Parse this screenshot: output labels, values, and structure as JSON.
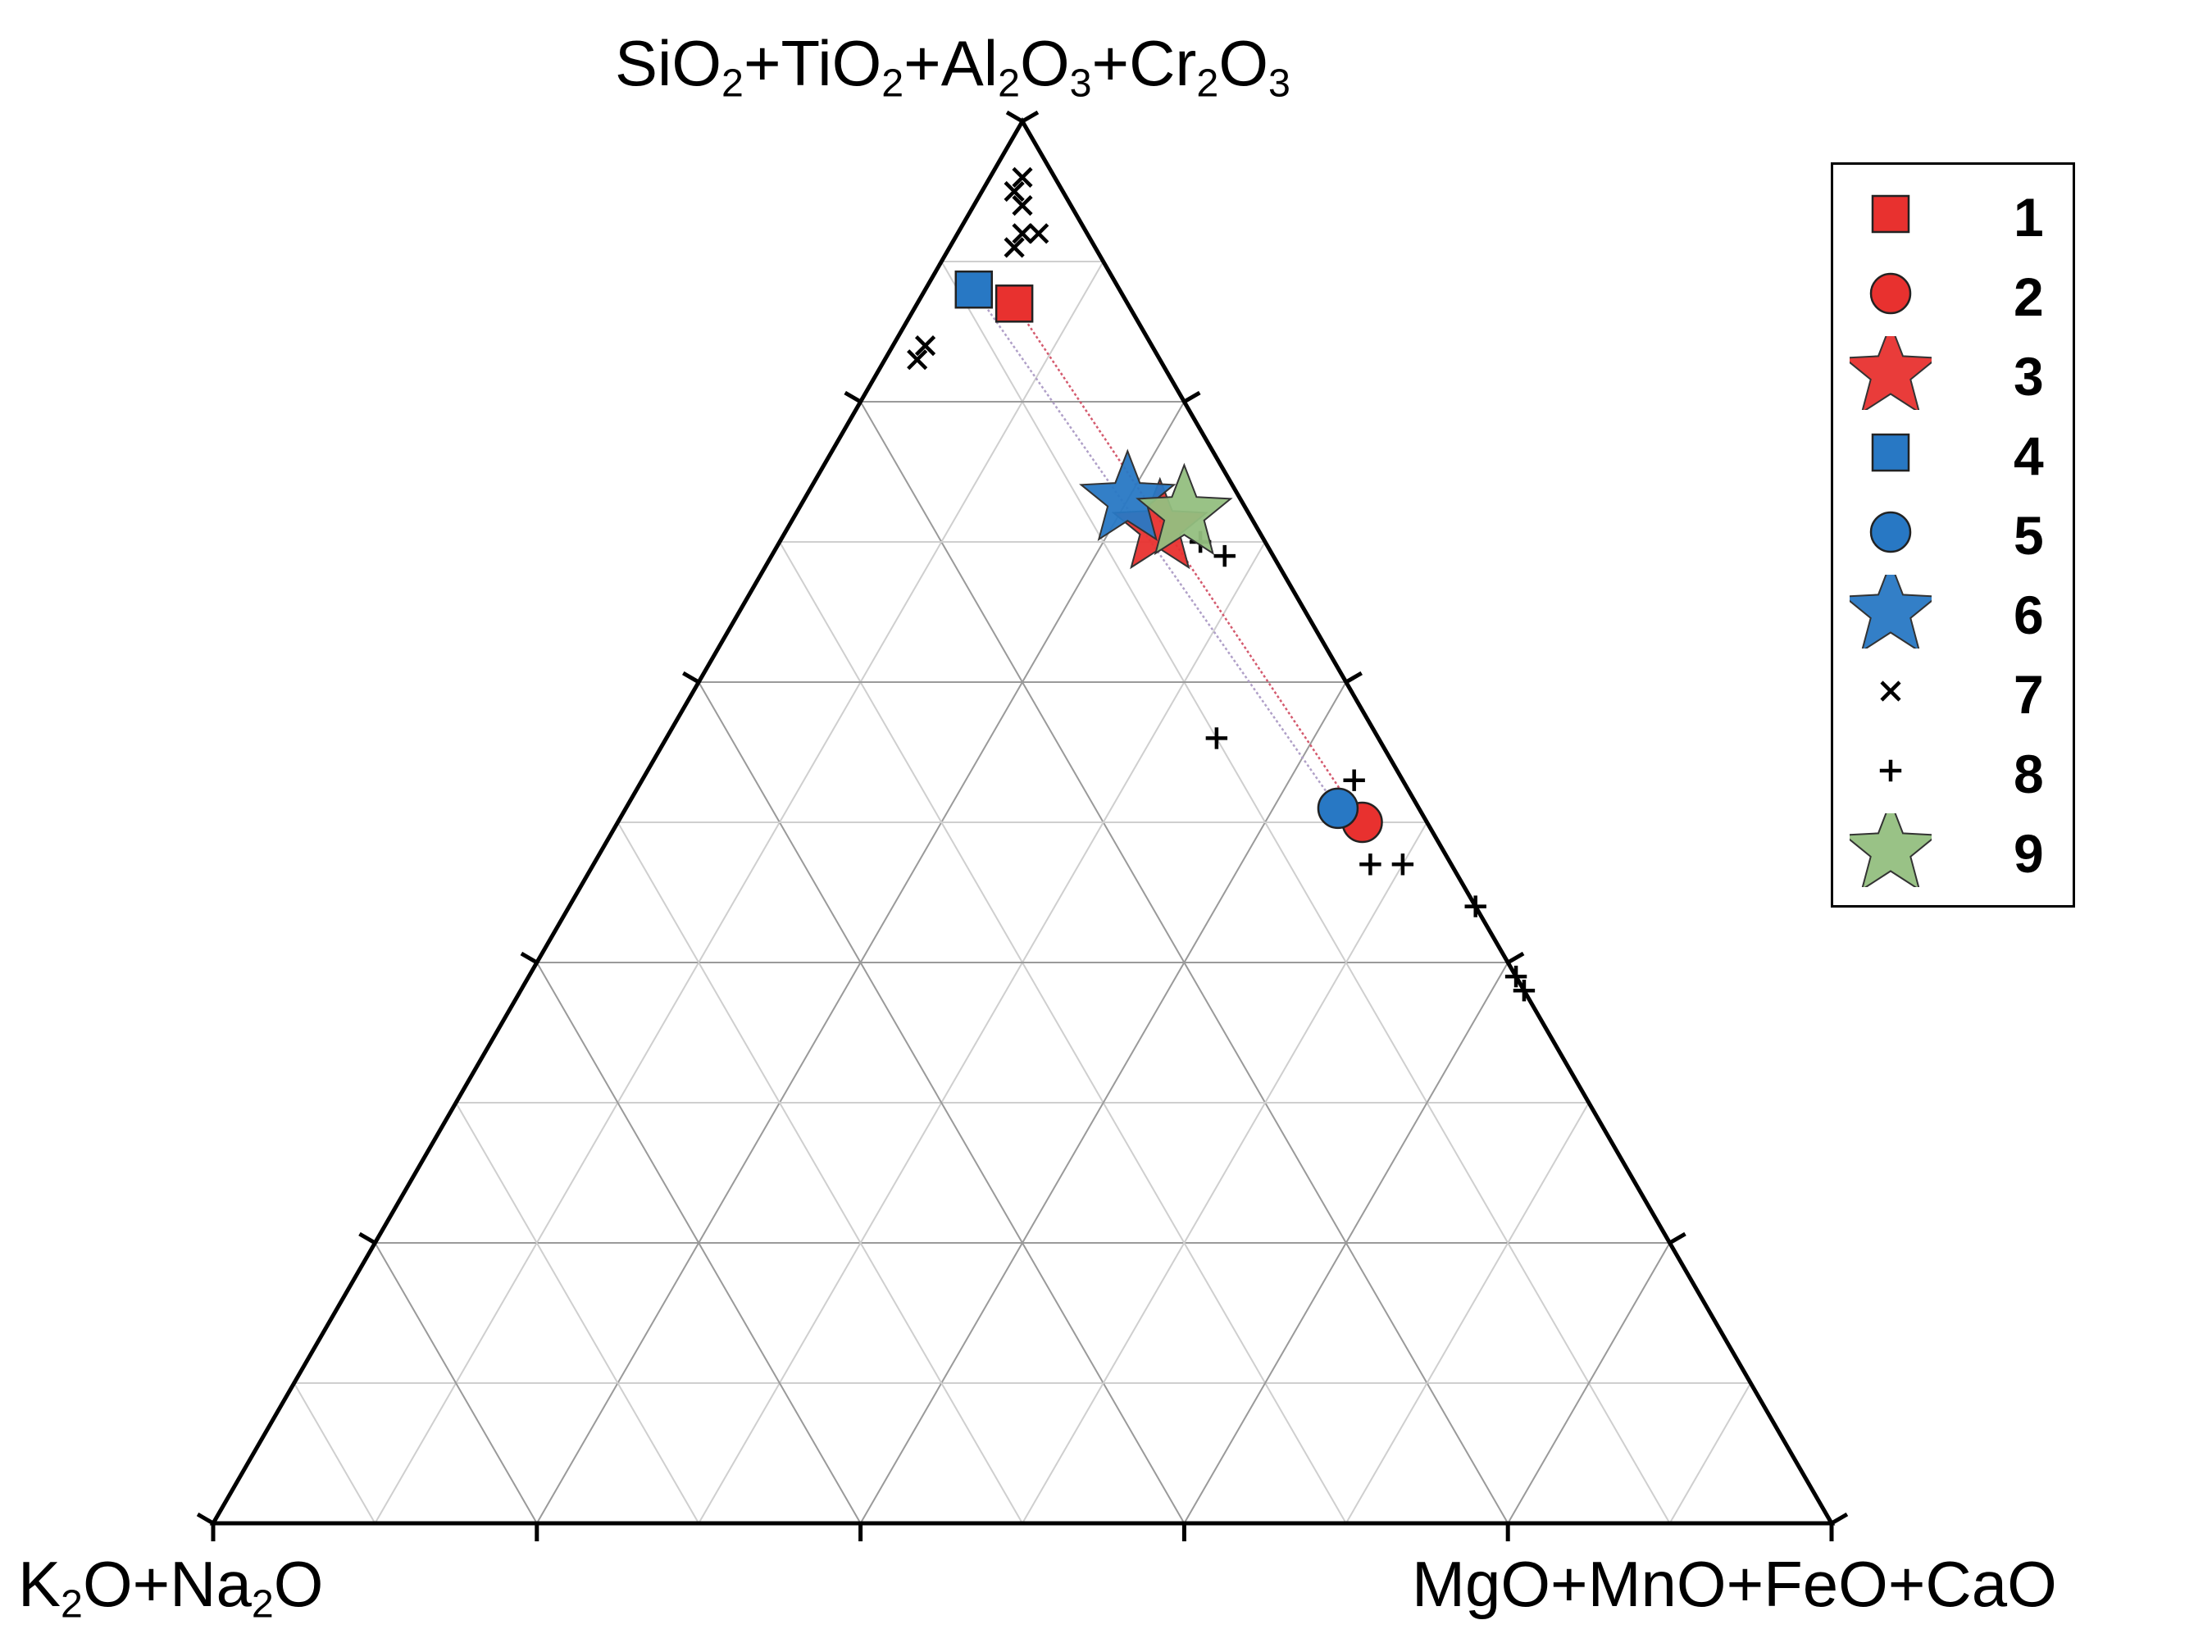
{
  "chart_data": {
    "type": "ternary-scatter",
    "axes": {
      "top": "SiO2+TiO2+Al2O3+Cr2O3",
      "left": "K2O+Na2O",
      "right": "MgO+MnO+FeO+CaO"
    },
    "axis_labels_rich": {
      "top": [
        "SiO",
        "2",
        "+TiO",
        "2",
        "+Al",
        "2",
        "O",
        "3",
        "+Cr",
        "2",
        "O",
        "3"
      ],
      "left": [
        "K",
        "2",
        "O+Na",
        "2",
        "O"
      ],
      "right": [
        "MgO+MnO+FeO+CaO"
      ]
    },
    "grid": true,
    "grid_step": 10,
    "legend_position": "top-right",
    "series": [
      {
        "name": "1",
        "marker": "square",
        "color": "#e8312f",
        "points": [
          {
            "top": 87,
            "left": 7,
            "right": 6
          }
        ]
      },
      {
        "name": "2",
        "marker": "circle",
        "color": "#e8312f",
        "points": [
          {
            "top": 50,
            "left": 4,
            "right": 46
          }
        ]
      },
      {
        "name": "3",
        "marker": "star",
        "color": "#e8312f",
        "points": [
          {
            "top": 71,
            "left": 6,
            "right": 23
          }
        ]
      },
      {
        "name": "4",
        "marker": "square",
        "color": "#2878c4",
        "points": [
          {
            "top": 88,
            "left": 9,
            "right": 3
          }
        ]
      },
      {
        "name": "5",
        "marker": "circle",
        "color": "#2878c4",
        "points": [
          {
            "top": 51,
            "left": 5,
            "right": 44
          }
        ]
      },
      {
        "name": "6",
        "marker": "star",
        "color": "#2878c4",
        "points": [
          {
            "top": 73,
            "left": 7,
            "right": 20
          }
        ]
      },
      {
        "name": "7",
        "marker": "x",
        "color": "#000000",
        "points": [
          {
            "top": 96,
            "left": 2,
            "right": 2
          },
          {
            "top": 95,
            "left": 3,
            "right": 2
          },
          {
            "top": 94,
            "left": 3,
            "right": 3
          },
          {
            "top": 92,
            "left": 4,
            "right": 4
          },
          {
            "top": 92,
            "left": 3,
            "right": 5
          },
          {
            "top": 91,
            "left": 5,
            "right": 4
          },
          {
            "top": 84,
            "left": 14,
            "right": 2
          },
          {
            "top": 83,
            "left": 15,
            "right": 2
          }
        ]
      },
      {
        "name": "8",
        "marker": "plus",
        "color": "#000000",
        "points": [
          {
            "top": 70,
            "left": 4,
            "right": 26
          },
          {
            "top": 69,
            "left": 3,
            "right": 28
          },
          {
            "top": 56,
            "left": 10,
            "right": 34
          },
          {
            "top": 53,
            "left": 3,
            "right": 44
          },
          {
            "top": 47,
            "left": 5,
            "right": 48
          },
          {
            "top": 47,
            "left": 3,
            "right": 50
          },
          {
            "top": 44,
            "left": 0,
            "right": 56
          },
          {
            "top": 39,
            "left": 0,
            "right": 61
          },
          {
            "top": 38,
            "left": 0,
            "right": 62
          }
        ]
      },
      {
        "name": "9",
        "marker": "star",
        "color": "#93bf80",
        "points": [
          {
            "top": 72,
            "left": 4,
            "right": 24
          }
        ]
      }
    ],
    "connectors": [
      {
        "from_series": "1",
        "to_series": "2",
        "color": "#d45a6e",
        "style": "dotted"
      },
      {
        "from_series": "4",
        "to_series": "5",
        "color": "#b0a0c8",
        "style": "dotted"
      }
    ]
  }
}
